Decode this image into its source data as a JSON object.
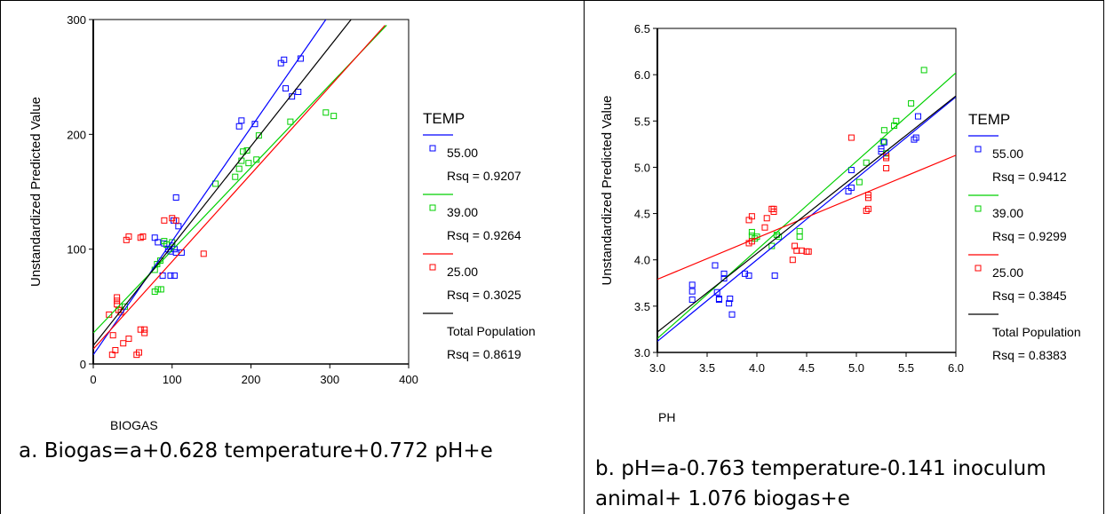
{
  "captions": {
    "a": "a. Biogas=a+0.628 temperature+0.772 pH+e",
    "b_line1": "b. pH=a-0.763 temperature-0.141 inoculum",
    "b_line2": "animal+ 1.076 biogas+e"
  },
  "chart_data": [
    {
      "id": "a",
      "type": "scatter",
      "xlabel": "BIOGAS",
      "ylabel": "Unstandardized Predicted Value",
      "xlim": [
        0,
        400
      ],
      "ylim": [
        0,
        300
      ],
      "xticks": [
        0,
        100,
        200,
        300,
        400
      ],
      "yticks": [
        0,
        100,
        200,
        300
      ],
      "tick_decimals": 0,
      "legend_title": "TEMP",
      "legend_position": "right",
      "series": [
        {
          "name": "55.00",
          "rsq": "Rsq = 0.9207",
          "color": "#0000ff",
          "line": [
            [
              0,
              8
            ],
            [
              295,
              300
            ]
          ],
          "points": [
            [
              78,
              110
            ],
            [
              82,
              106
            ],
            [
              90,
              105
            ],
            [
              95,
              100
            ],
            [
              98,
              98
            ],
            [
              100,
              103
            ],
            [
              103,
              100
            ],
            [
              105,
              97
            ],
            [
              108,
              120
            ],
            [
              112,
              97
            ],
            [
              105,
              145
            ],
            [
              102,
              125
            ],
            [
              88,
              77
            ],
            [
              98,
              77
            ],
            [
              103,
              77
            ],
            [
              185,
              207
            ],
            [
              188,
              212
            ],
            [
              205,
              209
            ],
            [
              238,
              262
            ],
            [
              242,
              265
            ],
            [
              263,
              266
            ],
            [
              244,
              240
            ],
            [
              252,
              233
            ],
            [
              260,
              237
            ]
          ]
        },
        {
          "name": "39.00",
          "rsq": "Rsq = 0.9264",
          "color": "#00d000",
          "line": [
            [
              0,
              27
            ],
            [
              372,
              295
            ]
          ],
          "points": [
            [
              35,
              47
            ],
            [
              40,
              50
            ],
            [
              78,
              63
            ],
            [
              82,
              65
            ],
            [
              86,
              65
            ],
            [
              78,
              82
            ],
            [
              81,
              87
            ],
            [
              85,
              90
            ],
            [
              90,
              107
            ],
            [
              100,
              106
            ],
            [
              93,
              104
            ],
            [
              155,
              157
            ],
            [
              180,
              163
            ],
            [
              185,
              170
            ],
            [
              188,
              177
            ],
            [
              190,
              185
            ],
            [
              195,
              186
            ],
            [
              197,
              175
            ],
            [
              207,
              178
            ],
            [
              210,
              199
            ],
            [
              250,
              211
            ],
            [
              295,
              219
            ],
            [
              305,
              216
            ]
          ]
        },
        {
          "name": "25.00",
          "rsq": "Rsq = 0.3025",
          "color": "#ff0000",
          "line": [
            [
              0,
              13
            ],
            [
              370,
              295
            ]
          ],
          "points": [
            [
              20,
              43
            ],
            [
              24,
              8
            ],
            [
              25,
              25
            ],
            [
              28,
              12
            ],
            [
              30,
              58
            ],
            [
              30,
              55
            ],
            [
              30,
              52
            ],
            [
              32,
              47
            ],
            [
              35,
              45
            ],
            [
              38,
              18
            ],
            [
              45,
              22
            ],
            [
              42,
              108
            ],
            [
              45,
              111
            ],
            [
              55,
              8
            ],
            [
              58,
              10
            ],
            [
              60,
              30
            ],
            [
              60,
              110
            ],
            [
              63,
              111
            ],
            [
              65,
              30
            ],
            [
              65,
              27
            ],
            [
              90,
              125
            ],
            [
              100,
              127
            ],
            [
              105,
              125
            ],
            [
              140,
              96
            ]
          ]
        },
        {
          "name": "Total Population",
          "rsq": "Rsq = 0.8619",
          "color": "#000000",
          "line": [
            [
              0,
              16
            ],
            [
              327,
              300
            ]
          ],
          "points": []
        }
      ]
    },
    {
      "id": "b",
      "type": "scatter",
      "xlabel": "PH",
      "ylabel": "Unstandardized Predicted Value",
      "xlim": [
        3.0,
        6.0
      ],
      "ylim": [
        3.0,
        6.5
      ],
      "xticks": [
        3.0,
        3.5,
        4.0,
        4.5,
        5.0,
        5.5,
        6.0
      ],
      "yticks": [
        3.0,
        3.5,
        4.0,
        4.5,
        5.0,
        5.5,
        6.0,
        6.5
      ],
      "tick_decimals": 1,
      "legend_title": "TEMP",
      "legend_position": "right",
      "series": [
        {
          "name": "55.00",
          "rsq": "Rsq = 0.9412",
          "color": "#0000ff",
          "line": [
            [
              3.0,
              3.12
            ],
            [
              6.0,
              5.76
            ]
          ],
          "points": [
            [
              3.35,
              3.73
            ],
            [
              3.35,
              3.66
            ],
            [
              3.35,
              3.57
            ],
            [
              3.58,
              3.94
            ],
            [
              3.6,
              3.65
            ],
            [
              3.62,
              3.58
            ],
            [
              3.62,
              3.57
            ],
            [
              3.67,
              3.85
            ],
            [
              3.67,
              3.8
            ],
            [
              3.72,
              3.53
            ],
            [
              3.73,
              3.58
            ],
            [
              3.75,
              3.41
            ],
            [
              3.88,
              3.85
            ],
            [
              3.92,
              3.83
            ],
            [
              4.18,
              3.83
            ],
            [
              4.92,
              4.74
            ],
            [
              4.95,
              4.78
            ],
            [
              4.95,
              4.97
            ],
            [
              5.25,
              5.2
            ],
            [
              5.25,
              5.17
            ],
            [
              5.28,
              5.27
            ],
            [
              5.58,
              5.3
            ],
            [
              5.6,
              5.32
            ],
            [
              5.62,
              5.55
            ]
          ]
        },
        {
          "name": "39.00",
          "rsq": "Rsq = 0.9299",
          "color": "#00d000",
          "line": [
            [
              3.0,
              3.15
            ],
            [
              6.0,
              6.02
            ]
          ],
          "points": [
            [
              3.95,
              4.26
            ],
            [
              3.95,
              4.3
            ],
            [
              3.98,
              4.23
            ],
            [
              4.0,
              4.25
            ],
            [
              4.15,
              4.15
            ],
            [
              4.2,
              4.27
            ],
            [
              4.22,
              4.25
            ],
            [
              4.43,
              4.25
            ],
            [
              4.43,
              4.31
            ],
            [
              5.03,
              4.84
            ],
            [
              5.1,
              5.05
            ],
            [
              5.27,
              5.28
            ],
            [
              5.28,
              5.4
            ],
            [
              5.38,
              5.45
            ],
            [
              5.4,
              5.5
            ],
            [
              5.55,
              5.69
            ],
            [
              5.68,
              6.05
            ],
            [
              5.3,
              5.15
            ]
          ]
        },
        {
          "name": "25.00",
          "rsq": "Rsq = 0.3845",
          "color": "#ff0000",
          "line": [
            [
              3.0,
              3.79
            ],
            [
              6.0,
              5.13
            ]
          ],
          "points": [
            [
              3.92,
              4.18
            ],
            [
              3.95,
              4.2
            ],
            [
              3.92,
              4.43
            ],
            [
              3.95,
              4.47
            ],
            [
              4.08,
              4.35
            ],
            [
              4.1,
              4.45
            ],
            [
              4.15,
              4.55
            ],
            [
              4.17,
              4.52
            ],
            [
              4.17,
              4.55
            ],
            [
              4.36,
              4.0
            ],
            [
              4.38,
              4.15
            ],
            [
              4.4,
              4.1
            ],
            [
              4.45,
              4.1
            ],
            [
              4.5,
              4.09
            ],
            [
              4.52,
              4.09
            ],
            [
              4.95,
              5.32
            ],
            [
              5.1,
              4.53
            ],
            [
              5.12,
              4.55
            ],
            [
              5.12,
              4.7
            ],
            [
              5.12,
              4.67
            ],
            [
              5.3,
              4.99
            ],
            [
              5.3,
              5.1
            ],
            [
              5.3,
              5.12
            ]
          ]
        },
        {
          "name": "Total Population",
          "rsq": "Rsq = 0.8383",
          "color": "#000000",
          "line": [
            [
              3.0,
              3.22
            ],
            [
              6.0,
              5.77
            ]
          ],
          "points": []
        }
      ]
    }
  ]
}
